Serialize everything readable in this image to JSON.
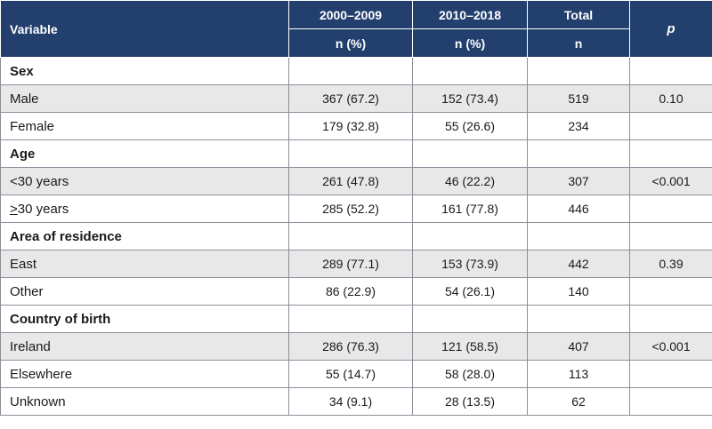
{
  "header": {
    "variable": "Variable",
    "period1": "2000–2009",
    "period2": "2010–2018",
    "total": "Total",
    "p": "p",
    "period1_sub": "n (%)",
    "period2_sub": "n (%)",
    "total_sub": "n"
  },
  "sections": {
    "sex": {
      "title": "Sex",
      "male": {
        "label": "Male",
        "p1": "367 (67.2)",
        "p2": "152 (73.4)",
        "total": "519",
        "p": "0.10"
      },
      "female": {
        "label": "Female",
        "p1": "179 (32.8)",
        "p2": "55 (26.6)",
        "total": "234",
        "p": ""
      }
    },
    "age": {
      "title": "Age",
      "under30": {
        "label": "<30 years",
        "p1": "261 (47.8)",
        "p2": "46 (22.2)",
        "total": "307",
        "p": "<0.001"
      },
      "over30": {
        "label_symbol": ">",
        "label_rest": "30 years",
        "p1": "285 (52.2)",
        "p2": "161 (77.8)",
        "total": "446",
        "p": ""
      }
    },
    "residence": {
      "title": "Area of residence",
      "east": {
        "label": "East",
        "p1": "289 (77.1)",
        "p2": "153 (73.9)",
        "total": "442",
        "p": "0.39"
      },
      "other": {
        "label": "Other",
        "p1": "86 (22.9)",
        "p2": "54 (26.1)",
        "total": "140",
        "p": ""
      }
    },
    "birth": {
      "title": "Country of birth",
      "ireland": {
        "label": "Ireland",
        "p1": "286 (76.3)",
        "p2": "121 (58.5)",
        "total": "407",
        "p": "<0.001"
      },
      "elsewhere": {
        "label": "Elsewhere",
        "p1": "55 (14.7)",
        "p2": "58 (28.0)",
        "total": "113",
        "p": ""
      },
      "unknown": {
        "label": "Unknown",
        "p1": "34 (9.1)",
        "p2": "28 (13.5)",
        "total": "62",
        "p": ""
      }
    }
  }
}
